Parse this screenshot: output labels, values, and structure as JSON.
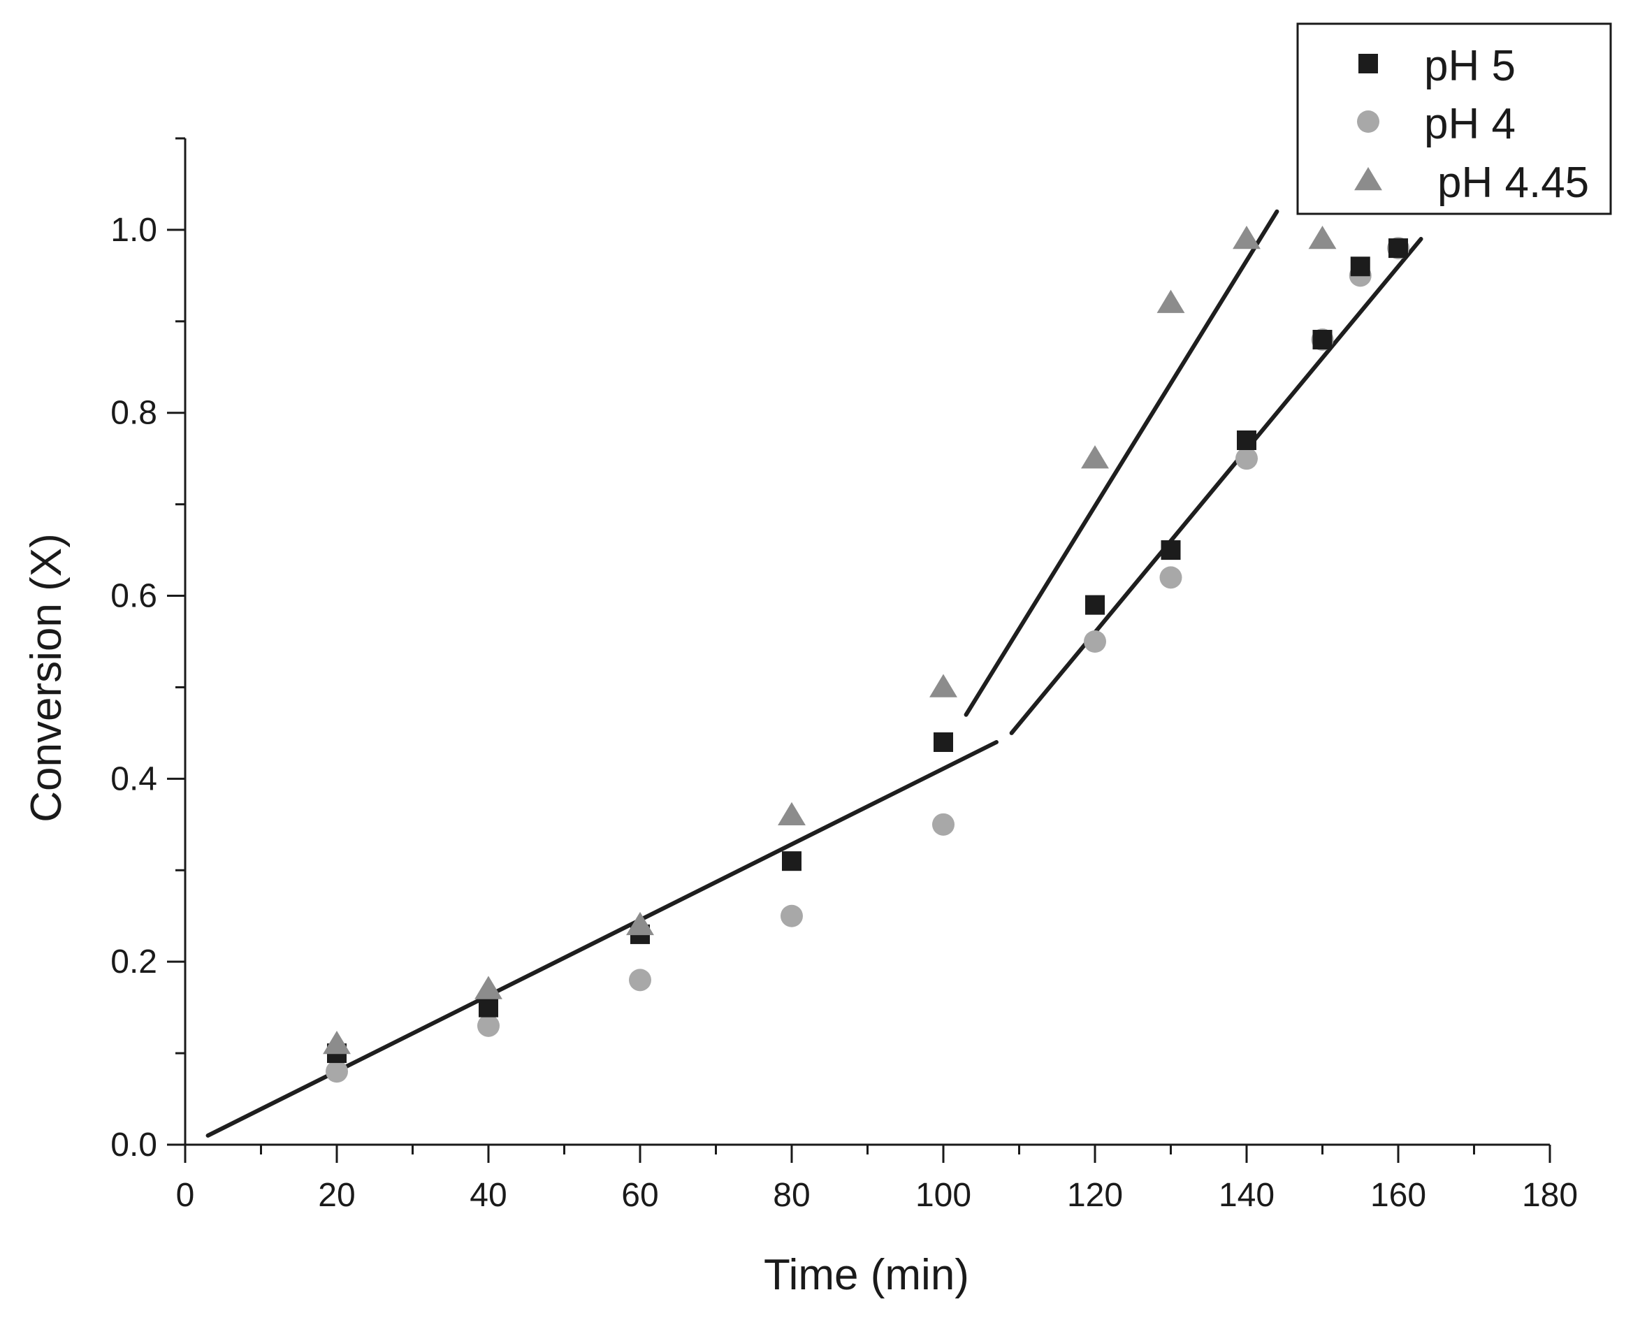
{
  "chart_data": {
    "type": "scatter",
    "title": "",
    "xlabel": "Time (min)",
    "ylabel": "Conversion (X)",
    "xlim": [
      0,
      180
    ],
    "ylim": [
      0,
      1.1
    ],
    "x_ticks": [
      0,
      20,
      40,
      60,
      80,
      100,
      120,
      140,
      160,
      180
    ],
    "x_tick_labels": [
      "0",
      "20",
      "40",
      "60",
      "80",
      "100",
      "120",
      "140",
      "160",
      "180"
    ],
    "y_ticks": [
      0.0,
      0.2,
      0.4,
      0.6,
      0.8,
      1.0
    ],
    "y_tick_labels": [
      "0.0",
      "0.2",
      "0.4",
      "0.6",
      "0.8",
      "1.0"
    ],
    "legend_position": "top-right",
    "series": [
      {
        "name": "pH 5",
        "marker": "square",
        "color": "#1c1c1c",
        "x": [
          20,
          40,
          60,
          80,
          100,
          120,
          130,
          140,
          150,
          155,
          160
        ],
        "y": [
          0.1,
          0.15,
          0.23,
          0.31,
          0.44,
          0.59,
          0.65,
          0.77,
          0.88,
          0.96,
          0.98
        ]
      },
      {
        "name": "pH 4",
        "marker": "circle",
        "color": "#a8a8a8",
        "x": [
          20,
          40,
          60,
          80,
          100,
          120,
          130,
          140,
          150,
          155,
          160
        ],
        "y": [
          0.08,
          0.13,
          0.18,
          0.25,
          0.35,
          0.55,
          0.62,
          0.75,
          0.88,
          0.95,
          0.98
        ]
      },
      {
        "name": "pH 4.45",
        "marker": "triangle",
        "color": "#8c8c8c",
        "x": [
          20,
          40,
          60,
          80,
          100,
          120,
          130,
          140,
          150
        ],
        "y": [
          0.11,
          0.17,
          0.24,
          0.36,
          0.5,
          0.75,
          0.92,
          0.99,
          0.99
        ]
      }
    ],
    "fit_lines": [
      {
        "name": "fit-initial",
        "x": [
          3,
          107
        ],
        "y": [
          0.01,
          0.44
        ]
      },
      {
        "name": "fit-ph445",
        "x": [
          103,
          144
        ],
        "y": [
          0.47,
          1.02
        ]
      },
      {
        "name": "fit-ph5-ph4",
        "x": [
          109,
          163
        ],
        "y": [
          0.45,
          0.99
        ]
      }
    ]
  }
}
